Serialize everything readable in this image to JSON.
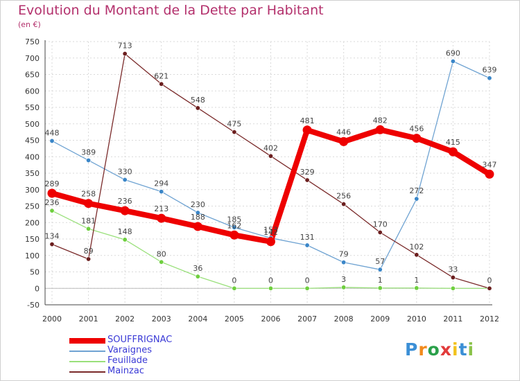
{
  "title": "Evolution du Montant de la Dette par Habitant",
  "subtitle": "(en €)",
  "logo": {
    "text": "Proxiti",
    "letter_colors": [
      "#3b8fd6",
      "#f28a1c",
      "#2aa04a",
      "#e23b3b",
      "#f2c21c",
      "#3b8fd6",
      "#8bc34a"
    ]
  },
  "chart_data": {
    "type": "line",
    "x": [
      "2000",
      "2001",
      "2002",
      "2003",
      "2004",
      "2005",
      "2006",
      "2007",
      "2008",
      "2009",
      "2010",
      "2011",
      "2012"
    ],
    "ylim": [
      -50,
      750
    ],
    "yticks": [
      -50,
      0,
      50,
      100,
      150,
      200,
      250,
      300,
      350,
      400,
      450,
      500,
      550,
      600,
      650,
      700,
      750
    ],
    "grid": true,
    "legend_position": "bottom-left",
    "series": [
      {
        "name": "SOUFFRIGNAC",
        "color": "#ee0000",
        "marker": "#ee0000",
        "bold": true,
        "values": [
          289,
          258,
          236,
          213,
          188,
          162,
          142,
          481,
          446,
          482,
          456,
          415,
          347
        ],
        "labels": [
          "289",
          "258",
          "236",
          "213",
          "188",
          "162",
          "142",
          "481",
          "446",
          "482",
          "456",
          "415",
          "347"
        ]
      },
      {
        "name": "Varaignes",
        "color": "#6fa3d2",
        "marker": "#3a86c8",
        "bold": false,
        "values": [
          448,
          389,
          330,
          294,
          230,
          185,
          153,
          131,
          79,
          57,
          272,
          690,
          639
        ],
        "labels": [
          "448",
          "389",
          "330",
          "294",
          "230",
          "185",
          "153",
          "131",
          "79",
          "57",
          "272",
          "690",
          "639"
        ]
      },
      {
        "name": "Feuillade",
        "color": "#99e07a",
        "marker": "#6fcf3f",
        "bold": false,
        "values": [
          236,
          181,
          148,
          80,
          36,
          0,
          0,
          0,
          3,
          1,
          1,
          0,
          0
        ],
        "labels": [
          "236",
          "181",
          "148",
          "80",
          "36",
          "0",
          "0",
          "0",
          "3",
          "1",
          "1",
          "",
          ""
        ]
      },
      {
        "name": "Mainzac",
        "color": "#7a2a2a",
        "marker": "#6b1e1e",
        "bold": false,
        "values": [
          134,
          89,
          713,
          621,
          548,
          475,
          402,
          329,
          256,
          170,
          102,
          33,
          0
        ],
        "labels": [
          "134",
          "89",
          "713",
          "621",
          "548",
          "475",
          "402",
          "329",
          "256",
          "170",
          "102",
          "33",
          "0"
        ]
      }
    ]
  }
}
